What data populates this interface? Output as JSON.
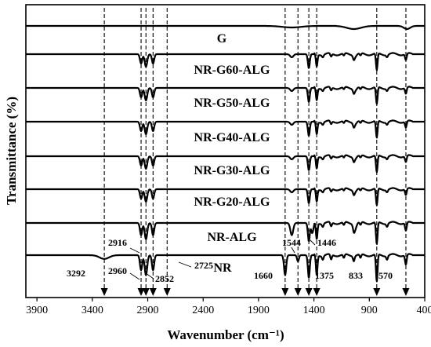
{
  "chart_data": {
    "type": "line",
    "title": "",
    "xlabel": "Wavenumber (cm⁻¹)",
    "ylabel": "Transmittance (%)",
    "x_range": [
      4000,
      400
    ],
    "x_reversed": true,
    "x_ticks": [
      3900,
      3400,
      2900,
      2400,
      1900,
      1400,
      900,
      400
    ],
    "y_ticks": [],
    "grid": false,
    "series": [
      {
        "name": "G",
        "offset": 0
      },
      {
        "name": "NR-G60-ALG",
        "offset": 1
      },
      {
        "name": "NR-G50-ALG",
        "offset": 2
      },
      {
        "name": "NR-G40-ALG",
        "offset": 3
      },
      {
        "name": "NR-G30-ALG",
        "offset": 4
      },
      {
        "name": "NR-G20-ALG",
        "offset": 5
      },
      {
        "name": "NR-ALG",
        "offset": 6
      },
      {
        "name": "NR",
        "offset": 7
      }
    ],
    "marker_lines": [
      3292,
      2960,
      2916,
      2852,
      2725,
      1660,
      1544,
      1446,
      1375,
      833,
      570
    ],
    "peak_labels": [
      "3292",
      "2960",
      "2916",
      "2852",
      "2725",
      "1660",
      "1544",
      "1446",
      "1375",
      "833",
      "570"
    ]
  }
}
